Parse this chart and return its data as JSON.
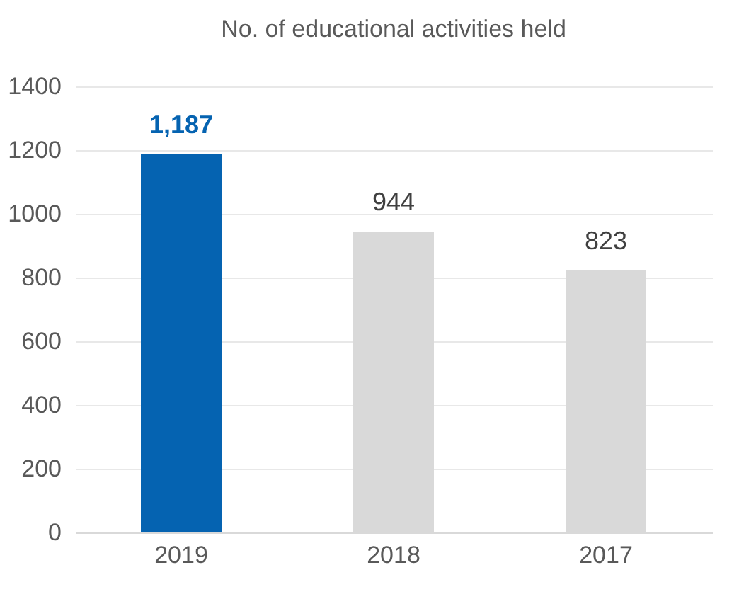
{
  "chart_data": {
    "type": "bar",
    "title": "No. of educational activities held",
    "categories": [
      "2019",
      "2018",
      "2017"
    ],
    "values": [
      1187,
      944,
      823
    ],
    "colors": [
      "#0563b1",
      "#d9d9d9",
      "#d9d9d9"
    ],
    "value_labels": [
      "1,187",
      "944",
      "823"
    ],
    "ylim": [
      0,
      1400
    ],
    "yticks": [
      0,
      200,
      400,
      600,
      800,
      1000,
      1200,
      1400
    ],
    "grid": "y"
  }
}
